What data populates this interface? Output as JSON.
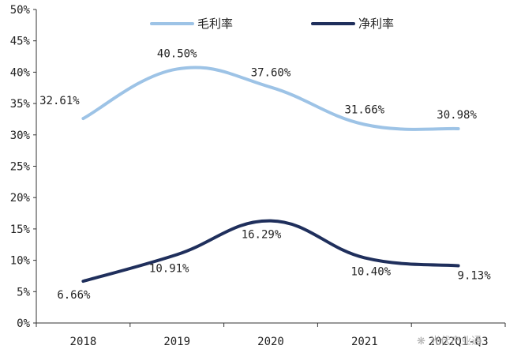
{
  "chart_data": {
    "type": "line",
    "categories": [
      "2018",
      "2019",
      "2020",
      "2021",
      "2022Q1-Q3"
    ],
    "ylim": [
      0,
      50
    ],
    "yticks": [
      0,
      5,
      10,
      15,
      20,
      25,
      30,
      35,
      40,
      45,
      50
    ],
    "ytick_labels": [
      "0%",
      "5%",
      "10%",
      "15%",
      "20%",
      "25%",
      "30%",
      "35%",
      "40%",
      "45%",
      "50%"
    ],
    "grid": false,
    "legend_position": "top-center",
    "series": [
      {
        "name": "毛利率",
        "color": "#9dc3e6",
        "values": [
          32.61,
          40.5,
          37.6,
          31.66,
          30.98
        ],
        "labels": [
          "32.61%",
          "40.50%",
          "37.60%",
          "31.66%",
          "30.98%"
        ]
      },
      {
        "name": "净利率",
        "color": "#1f2f5c",
        "values": [
          6.66,
          10.91,
          16.29,
          10.4,
          9.13
        ],
        "labels": [
          "6.66%",
          "10.91%",
          "16.29%",
          "10.40%",
          "9.13%"
        ]
      }
    ]
  },
  "watermark": {
    "text": "光伏产业通"
  }
}
